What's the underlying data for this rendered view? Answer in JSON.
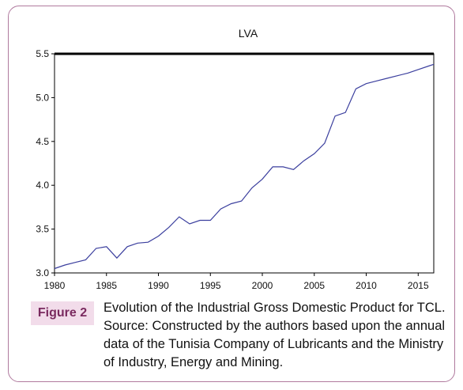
{
  "figure": {
    "label": "Figure 2",
    "caption": "Evolution of the Industrial Gross Domestic Product for TCL. Source: Constructed by the authors based upon the annual data of the Tunisia Company of Lubricants and the Ministry of Industry, Energy and Mining."
  },
  "chart_data": {
    "type": "line",
    "title": "LVA",
    "xlabel": "",
    "ylabel": "",
    "xlim": [
      1980,
      2016.5
    ],
    "ylim": [
      3.0,
      5.5
    ],
    "x_ticks": [
      "1980",
      "1985",
      "1990",
      "1995",
      "2000",
      "2005",
      "2010",
      "2015"
    ],
    "y_ticks": [
      "3.0",
      "3.5",
      "4.0",
      "4.5",
      "5.0",
      "5.5"
    ],
    "grid": false,
    "legend": "none",
    "line_color": "#3b3f9e",
    "series": [
      {
        "x": [
          1980,
          1981,
          1982,
          1983,
          1984,
          1985,
          1986,
          1987,
          1988,
          1989,
          1990,
          1991,
          1992,
          1993,
          1994,
          1995,
          1996,
          1997,
          1998,
          1999,
          2000,
          2001,
          2002,
          2003,
          2004,
          2005,
          2006,
          2007,
          2008,
          2009,
          2010,
          2011,
          2012,
          2013,
          2014,
          2015,
          2016,
          2016.5
        ],
        "values": [
          3.05,
          3.09,
          3.12,
          3.15,
          3.28,
          3.3,
          3.17,
          3.3,
          3.34,
          3.35,
          3.42,
          3.52,
          3.64,
          3.56,
          3.6,
          3.6,
          3.73,
          3.79,
          3.82,
          3.97,
          4.07,
          4.21,
          4.21,
          4.18,
          4.28,
          4.36,
          4.48,
          4.79,
          4.83,
          5.1,
          5.16,
          5.19,
          5.22,
          5.25,
          5.28,
          5.32,
          5.36,
          5.38
        ]
      }
    ]
  }
}
